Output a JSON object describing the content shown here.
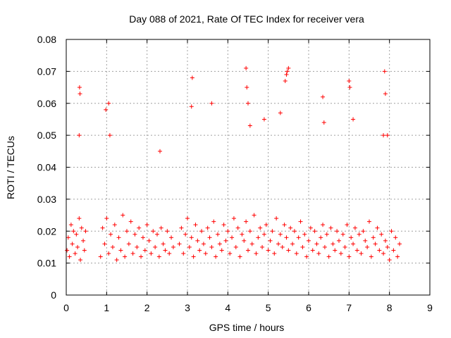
{
  "chart_data": {
    "type": "scatter",
    "title": "Day 088 of 2021, Rate Of TEC Index for receiver vera",
    "xlabel": "GPS time / hours",
    "ylabel": "ROTI / TECUs",
    "xlim": [
      0,
      9
    ],
    "ylim": [
      0,
      0.08
    ],
    "xticks": [
      "0",
      "1",
      "2",
      "3",
      "4",
      "5",
      "6",
      "7",
      "8",
      "9"
    ],
    "yticks": [
      "0",
      "0.01",
      "0.02",
      "0.03",
      "0.04",
      "0.05",
      "0.06",
      "0.07",
      "0.08"
    ],
    "grid": true,
    "marker": "+",
    "color": "#ff0000",
    "series": [
      {
        "name": "ROTI",
        "x": [
          0.02,
          0.05,
          0.08,
          0.12,
          0.15,
          0.18,
          0.22,
          0.25,
          0.28,
          0.32,
          0.35,
          0.38,
          0.42,
          0.45,
          0.48,
          0.85,
          0.9,
          0.95,
          1.0,
          1.05,
          1.1,
          1.15,
          1.2,
          1.25,
          1.3,
          1.35,
          1.4,
          1.45,
          1.5,
          1.55,
          1.6,
          1.65,
          1.7,
          1.75,
          1.8,
          1.85,
          1.9,
          1.95,
          2.0,
          2.05,
          2.1,
          2.15,
          2.2,
          2.25,
          2.3,
          2.35,
          2.4,
          2.45,
          2.5,
          2.55,
          2.6,
          2.65,
          2.8,
          2.85,
          2.9,
          2.95,
          3.0,
          3.05,
          3.1,
          3.15,
          3.2,
          3.25,
          3.3,
          3.35,
          3.4,
          3.45,
          3.5,
          3.55,
          3.6,
          3.65,
          3.7,
          3.75,
          3.8,
          3.85,
          3.9,
          3.95,
          4.0,
          4.05,
          4.1,
          4.15,
          4.2,
          4.25,
          4.3,
          4.35,
          4.4,
          4.45,
          4.5,
          4.55,
          4.6,
          4.65,
          4.7,
          4.75,
          4.8,
          4.85,
          4.9,
          4.95,
          5.0,
          5.05,
          5.1,
          5.15,
          5.2,
          5.25,
          5.3,
          5.35,
          5.4,
          5.45,
          5.5,
          5.55,
          5.6,
          5.65,
          5.7,
          5.75,
          5.8,
          5.85,
          5.9,
          5.95,
          6.0,
          6.05,
          6.1,
          6.15,
          6.2,
          6.25,
          6.3,
          6.35,
          6.4,
          6.45,
          6.5,
          6.55,
          6.6,
          6.65,
          6.7,
          6.75,
          6.8,
          6.85,
          6.9,
          6.95,
          7.0,
          7.05,
          7.1,
          7.15,
          7.2,
          7.25,
          7.3,
          7.35,
          7.4,
          7.45,
          7.5,
          7.55,
          7.6,
          7.65,
          7.7,
          7.75,
          7.8,
          7.85,
          7.9,
          7.95,
          8.0,
          8.05,
          8.1,
          8.15,
          8.2,
          8.25,
          0.33,
          0.34,
          0.32,
          0.98,
          1.05,
          1.08,
          2.32,
          3.1,
          3.12,
          3.6,
          4.45,
          4.47,
          4.5,
          4.55,
          4.9,
          5.42,
          5.45,
          5.47,
          5.5,
          5.3,
          6.35,
          6.38,
          7.0,
          7.02,
          7.1,
          7.88,
          7.9,
          7.85,
          7.95
        ],
        "y": [
          0.014,
          0.018,
          0.012,
          0.022,
          0.016,
          0.02,
          0.013,
          0.019,
          0.015,
          0.024,
          0.011,
          0.021,
          0.017,
          0.014,
          0.02,
          0.012,
          0.021,
          0.016,
          0.024,
          0.013,
          0.019,
          0.015,
          0.022,
          0.011,
          0.018,
          0.014,
          0.025,
          0.012,
          0.02,
          0.016,
          0.023,
          0.013,
          0.019,
          0.015,
          0.021,
          0.012,
          0.018,
          0.014,
          0.022,
          0.017,
          0.013,
          0.02,
          0.015,
          0.019,
          0.012,
          0.021,
          0.016,
          0.014,
          0.02,
          0.013,
          0.018,
          0.015,
          0.016,
          0.021,
          0.013,
          0.019,
          0.024,
          0.015,
          0.018,
          0.012,
          0.022,
          0.017,
          0.014,
          0.02,
          0.016,
          0.013,
          0.021,
          0.018,
          0.015,
          0.023,
          0.012,
          0.019,
          0.016,
          0.014,
          0.022,
          0.017,
          0.02,
          0.013,
          0.018,
          0.024,
          0.015,
          0.021,
          0.012,
          0.019,
          0.017,
          0.023,
          0.014,
          0.02,
          0.016,
          0.025,
          0.013,
          0.018,
          0.021,
          0.015,
          0.019,
          0.022,
          0.014,
          0.017,
          0.02,
          0.013,
          0.024,
          0.016,
          0.019,
          0.015,
          0.022,
          0.018,
          0.014,
          0.021,
          0.016,
          0.02,
          0.013,
          0.018,
          0.023,
          0.015,
          0.019,
          0.012,
          0.017,
          0.021,
          0.014,
          0.02,
          0.016,
          0.013,
          0.018,
          0.022,
          0.015,
          0.019,
          0.012,
          0.021,
          0.016,
          0.014,
          0.02,
          0.017,
          0.013,
          0.019,
          0.015,
          0.022,
          0.012,
          0.018,
          0.016,
          0.021,
          0.014,
          0.019,
          0.013,
          0.02,
          0.017,
          0.015,
          0.023,
          0.012,
          0.018,
          0.016,
          0.021,
          0.014,
          0.019,
          0.013,
          0.017,
          0.015,
          0.011,
          0.02,
          0.014,
          0.018,
          0.012,
          0.016,
          0.065,
          0.063,
          0.05,
          0.058,
          0.06,
          0.05,
          0.045,
          0.059,
          0.068,
          0.06,
          0.071,
          0.065,
          0.06,
          0.053,
          0.055,
          0.067,
          0.069,
          0.07,
          0.071,
          0.057,
          0.062,
          0.054,
          0.067,
          0.065,
          0.055,
          0.07,
          0.063,
          0.05,
          0.05
        ]
      }
    ]
  }
}
